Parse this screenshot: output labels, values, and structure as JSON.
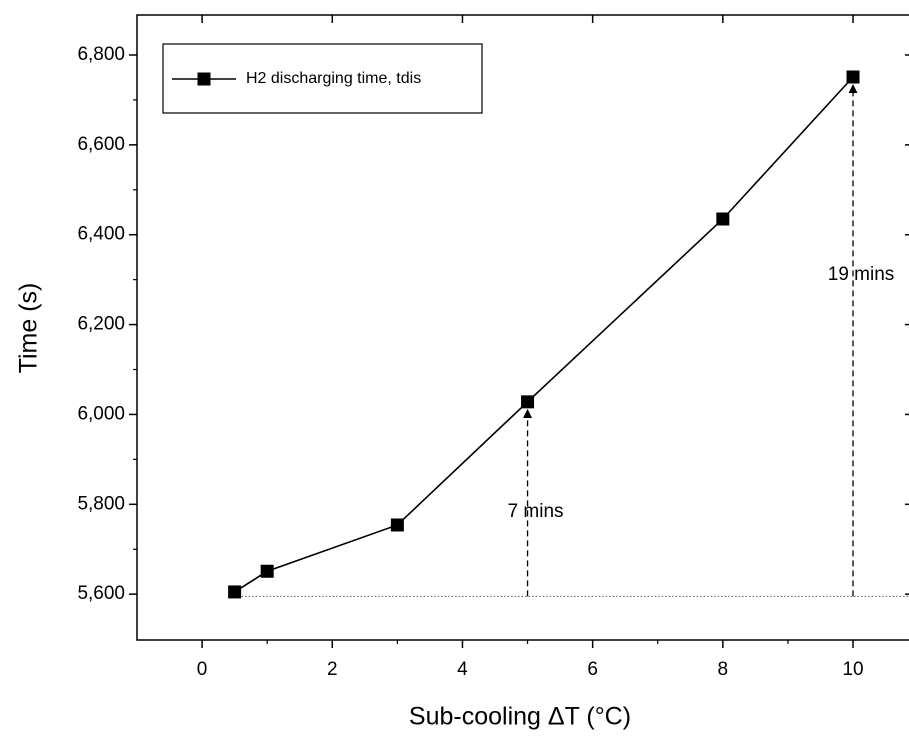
{
  "chart_data": {
    "type": "line",
    "x_label": "Sub-cooling ΔT (°C)",
    "y_label": "Time (s)",
    "series": [
      {
        "name": "H2 discharging time, tdis",
        "color": "#000000",
        "x": [
          0.5,
          1,
          3,
          5,
          8,
          10
        ],
        "values": [
          5605,
          5651,
          5754,
          6028,
          6435,
          6751
        ]
      }
    ],
    "xlim": [
      -1,
      10.86
    ],
    "xticks": [
      0,
      2,
      4,
      6,
      8,
      10
    ],
    "ylim": [
      5498,
      6889
    ],
    "yticks": [
      {
        "value": 5600,
        "label": "5,600"
      },
      {
        "value": 5800,
        "label": "5,800"
      },
      {
        "value": 6000,
        "label": "6,000"
      },
      {
        "value": 6200,
        "label": "6,200"
      },
      {
        "value": 6400,
        "label": "6,400"
      },
      {
        "value": 6600,
        "label": "6,600"
      },
      {
        "value": 6800,
        "label": "6,800"
      }
    ],
    "baseline": 5595,
    "annotations": [
      {
        "text": "7 mins",
        "x": 5
      },
      {
        "text": "19 mins",
        "x": 10
      }
    ],
    "legend": "upper left"
  }
}
